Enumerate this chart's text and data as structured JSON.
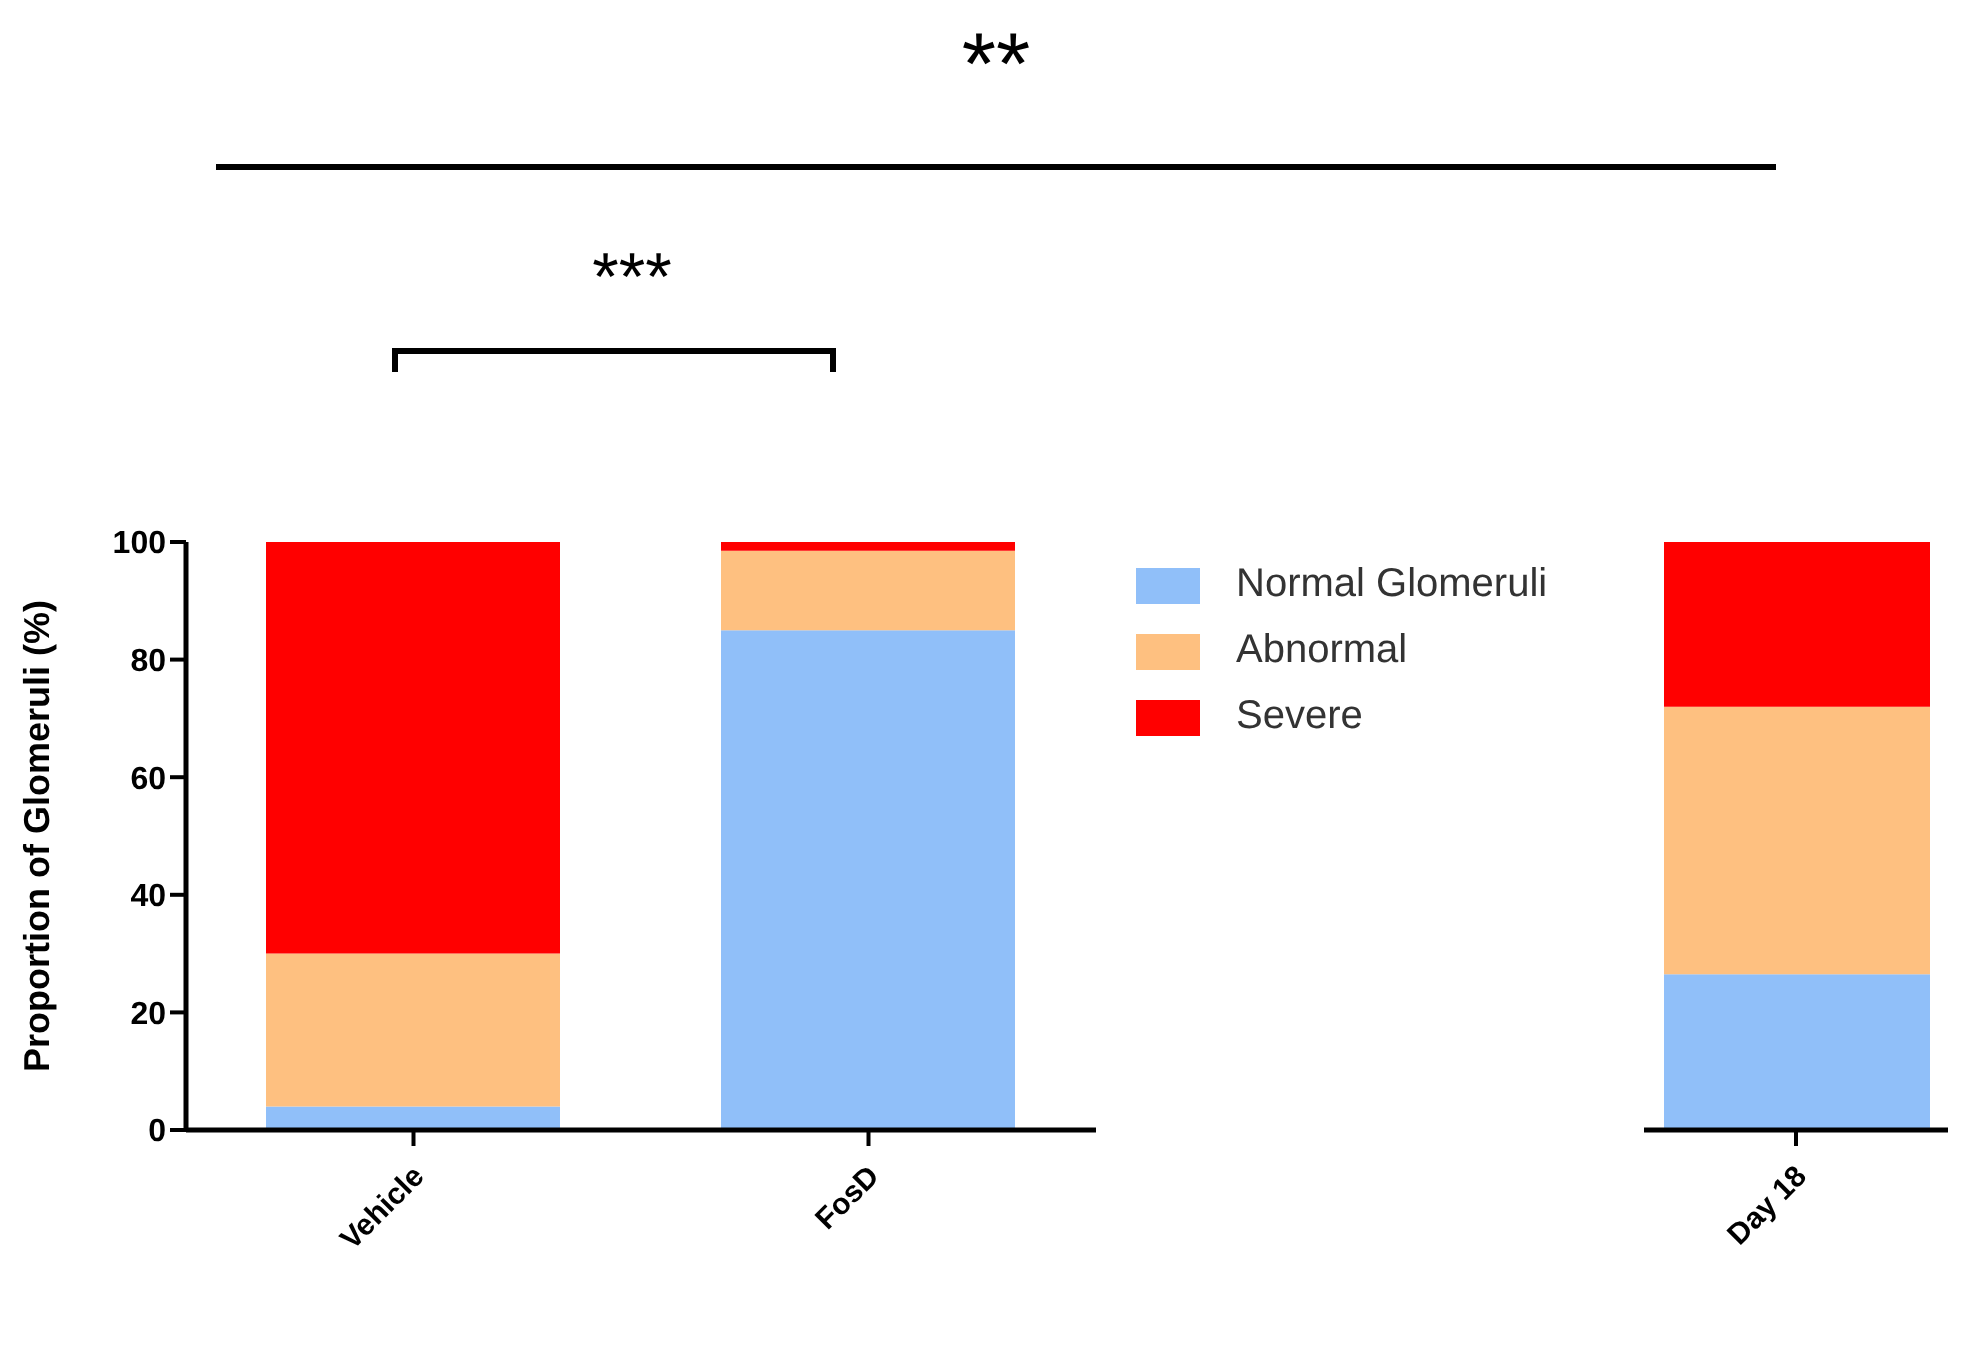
{
  "chart_data": [
    {
      "type": "bar",
      "stacked": true,
      "categories": [
        "Vehicle",
        "FosD"
      ],
      "ylabel": "Proportion of Glomeruli (%)",
      "ylim": [
        0,
        100
      ],
      "yticks": [
        0,
        20,
        40,
        60,
        80,
        100
      ],
      "legend": "right",
      "grid": false,
      "annotations": [
        "***",
        "**"
      ],
      "series": [
        {
          "name": "Normal Glomeruli",
          "color": "#90bff9",
          "values": [
            4,
            85
          ]
        },
        {
          "name": "Abnormal",
          "color": "#fec080",
          "values": [
            26,
            13.5
          ]
        },
        {
          "name": "Severe",
          "color": "#ff0000",
          "values": [
            70,
            1.5
          ]
        }
      ]
    },
    {
      "type": "bar",
      "stacked": true,
      "categories": [
        "Day 18"
      ],
      "ylim": [
        0,
        100
      ],
      "tick_labels": "x",
      "series": [
        {
          "color": "#90bff9",
          "values": [
            26.5
          ]
        },
        {
          "color": "#fec080",
          "values": [
            45.5
          ]
        },
        {
          "color": "#ff0000",
          "values": [
            28
          ]
        }
      ]
    }
  ]
}
